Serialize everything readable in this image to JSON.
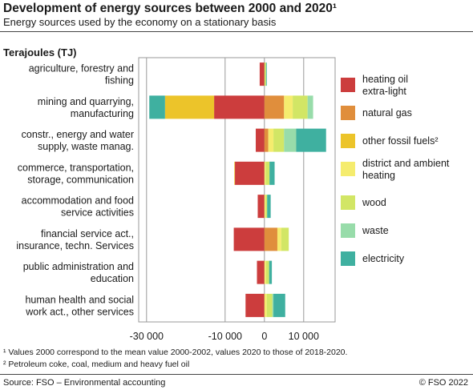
{
  "title": "Development of energy sources between 2000 and 2020¹",
  "subtitle": "Energy sources used by the economy on a stationary basis",
  "unit_label": "Terajoules (TJ)",
  "footnotes": [
    "¹   Values 2000 correspond to the mean value 2000-2002, values 2020 to those of 2018-2020.",
    "²   Petroleum coke, coal, medium and heavy fuel oil"
  ],
  "source": "Source: FSO – Environmental accounting",
  "copyright": "© FSO 2022",
  "chart_data": {
    "type": "bar",
    "orientation": "horizontal",
    "stacked": "diverging",
    "xlim": [
      -32000,
      18000
    ],
    "xticks": [
      -30000,
      -10000,
      0,
      10000
    ],
    "xtick_labels": [
      "-30 000",
      "-10 000",
      "0",
      "10 000"
    ],
    "grid": true,
    "legend_position": "right",
    "categories": [
      [
        "agriculture, forestry and",
        "fishing"
      ],
      [
        "mining and quarrying,",
        "manufacturing"
      ],
      [
        "constr., energy and water",
        "supply, waste manag."
      ],
      [
        "commerce, transportation,",
        "storage, communication"
      ],
      [
        "accommodation and food",
        "service activities"
      ],
      [
        "financial service act.,",
        "insurance, techn. Services"
      ],
      [
        "public administration and",
        "education"
      ],
      [
        "human health and social",
        "work act., other services"
      ]
    ],
    "series": [
      {
        "name": "heating oil extra-light",
        "color": "#cc3d3d",
        "values": [
          -1200,
          -12800,
          -2200,
          -7500,
          -1700,
          -7800,
          -1900,
          -4800
        ]
      },
      {
        "name": "natural gas",
        "color": "#e08e3c",
        "values": [
          0,
          5000,
          1000,
          0,
          0,
          3300,
          0,
          0
        ]
      },
      {
        "name": "other fossil fuels²",
        "color": "#ecc42a",
        "values": [
          0,
          -12500,
          0,
          -150,
          0,
          0,
          0,
          0
        ]
      },
      {
        "name": "district and ambient heating",
        "color": "#f5ec6e",
        "values": [
          0,
          2200,
          1300,
          300,
          300,
          1000,
          400,
          600
        ]
      },
      {
        "name": "wood",
        "color": "#d2e665",
        "values": [
          400,
          3800,
          2700,
          1000,
          400,
          1900,
          800,
          1400
        ]
      },
      {
        "name": "waste",
        "color": "#98dcaa",
        "values": [
          0,
          1400,
          3100,
          0,
          0,
          0,
          0,
          300
        ]
      },
      {
        "name": "electricity",
        "color": "#3fb0a0",
        "values": [
          200,
          -4000,
          7600,
          1300,
          900,
          0,
          700,
          3000
        ]
      }
    ]
  }
}
